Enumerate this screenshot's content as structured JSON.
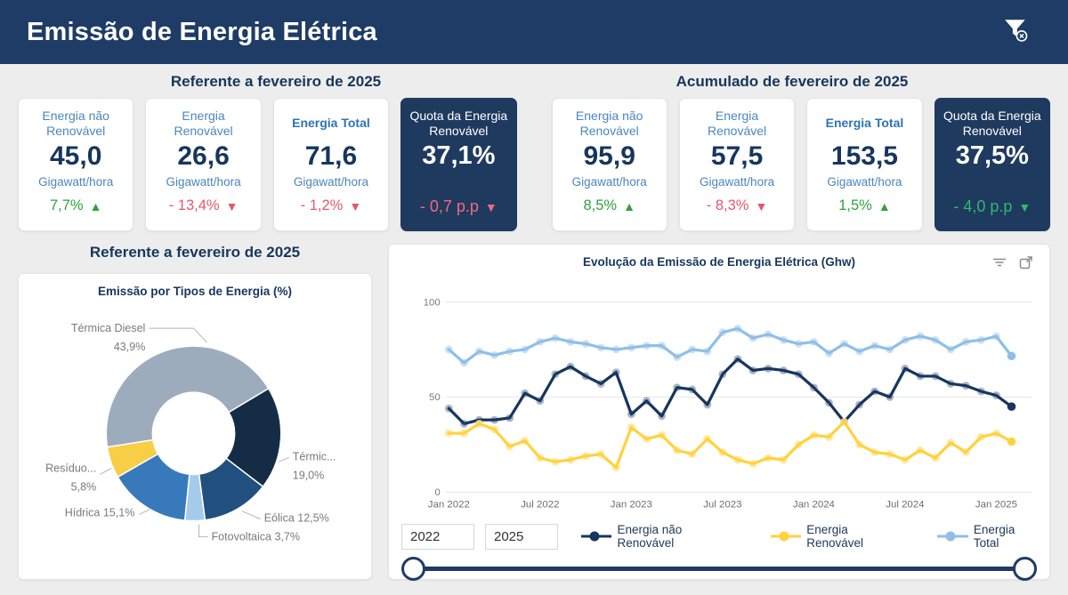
{
  "header": {
    "title": "Emissão de Energia Elétrica"
  },
  "icons": {
    "header_right": "clear-filter-funnel",
    "chart_header": [
      "filter-lines-icon",
      "focus-mode-icon"
    ]
  },
  "kpi_groups": [
    {
      "title": "Referente a fevereiro de 2025",
      "cards": [
        {
          "label": "Energia não Renovável",
          "value": "45,0",
          "unit": "Gigawatt/hora",
          "delta": "7,7%",
          "arrow": "up",
          "delta_color": "green",
          "style": "light",
          "bold": false
        },
        {
          "label": "Energia Renovável",
          "value": "26,6",
          "unit": "Gigawatt/hora",
          "delta": "- 13,4%",
          "arrow": "down",
          "delta_color": "red",
          "style": "light",
          "bold": false
        },
        {
          "label": "Energia Total",
          "value": "71,6",
          "unit": "Gigawatt/hora",
          "delta": "- 1,2%",
          "arrow": "down",
          "delta_color": "red",
          "style": "light",
          "bold": true
        },
        {
          "label": "Quota da Energia Renovável",
          "value": "37,1%",
          "unit": "",
          "delta": "- 0,7 p.p",
          "arrow": "down",
          "delta_color": "red",
          "style": "dark",
          "bold": false
        }
      ]
    },
    {
      "title": "Acumulado de fevereiro de 2025",
      "cards": [
        {
          "label": "Energia não Renovável",
          "value": "95,9",
          "unit": "Gigawatt/hora",
          "delta": "8,5%",
          "arrow": "up",
          "delta_color": "green",
          "style": "light",
          "bold": false
        },
        {
          "label": "Energia Renovável",
          "value": "57,5",
          "unit": "Gigawatt/hora",
          "delta": "- 8,3%",
          "arrow": "down",
          "delta_color": "red",
          "style": "light",
          "bold": false
        },
        {
          "label": "Energia Total",
          "value": "153,5",
          "unit": "Gigawatt/hora",
          "delta": "1,5%",
          "arrow": "up",
          "delta_color": "green",
          "style": "light",
          "bold": true
        },
        {
          "label": "Quota da Energia Renovável",
          "value": "37,5%",
          "unit": "",
          "delta": "- 4,0 p.p",
          "arrow": "down",
          "delta_color": "green",
          "style": "dark",
          "bold": false
        }
      ]
    }
  ],
  "donut_section": {
    "header": "Referente a fevereiro de 2025"
  },
  "slicer": {
    "start": "2022",
    "end": "2025"
  },
  "chart_data": [
    {
      "type": "pie",
      "subtype": "donut",
      "title": "Emissão por Tipos de Energia (%)",
      "start_angle_deg": 261,
      "slices": [
        {
          "label": "Térmica Diesel",
          "pct_text": "43,9%",
          "value": 43.9,
          "color": "#9DACBD"
        },
        {
          "label": "Térmic...",
          "pct_text": "19,0%",
          "value": 19.0,
          "color": "#152C47"
        },
        {
          "label": "Eólica",
          "pct_text": "12,5%",
          "value": 12.5,
          "color": "#21507F"
        },
        {
          "label": "Fotovoltaica",
          "pct_text": "3,7%",
          "value": 3.7,
          "color": "#A6CAEC"
        },
        {
          "label": "Hídrica",
          "pct_text": "15,1%",
          "value": 15.1,
          "color": "#3879BC"
        },
        {
          "label": "Resíduo...",
          "pct_text": "5,8%",
          "value": 5.8,
          "color": "#F8CE46"
        }
      ]
    },
    {
      "type": "line",
      "title": "Evolução da Emissão de Energia Elétrica (Ghw)",
      "ylim": [
        0,
        100
      ],
      "yticks": [
        0,
        50,
        100
      ],
      "x_tick_labels": [
        "Jan 2022",
        "Jul 2022",
        "Jan 2023",
        "Jul 2023",
        "Jan 2024",
        "Jul 2024",
        "Jan 2025"
      ],
      "x_tick_indices": [
        0,
        6,
        12,
        18,
        24,
        30,
        36
      ],
      "grid": "horizontal",
      "legend_position": "bottom",
      "series": [
        {
          "name": "Energia não Renovável",
          "color": "#17365F",
          "halo": "#9AA7BC",
          "values": [
            44,
            36,
            38,
            38,
            39,
            52,
            48,
            62,
            66,
            61,
            57,
            63,
            41,
            48,
            40,
            55,
            54,
            46,
            62,
            70,
            64,
            65,
            64,
            62,
            55,
            47,
            37,
            46,
            53,
            50,
            65,
            61,
            61,
            57,
            56,
            53,
            50.9,
            45.0
          ]
        },
        {
          "name": "Energia Renovável",
          "color": "#FFD23F",
          "halo": "#FFE48E",
          "values": [
            31,
            31,
            36,
            33,
            24,
            27,
            18,
            16,
            17,
            19,
            20,
            13,
            34,
            28,
            30,
            22,
            20,
            28,
            21,
            17,
            15,
            18,
            17,
            25,
            30,
            29,
            37,
            25,
            21,
            20,
            17,
            22,
            18,
            26,
            21,
            29,
            30.9,
            26.6
          ]
        },
        {
          "name": "Energia Total",
          "color": "#8FBFE8",
          "halo": "#C2DDF2",
          "values": [
            75,
            68,
            74,
            72,
            74,
            75,
            79,
            81,
            79,
            78,
            76,
            75,
            76,
            77,
            77,
            71,
            75,
            74,
            84,
            86,
            81,
            83,
            80,
            78,
            79,
            73,
            78,
            74,
            77,
            75,
            80,
            82,
            80,
            75,
            79,
            80,
            81.9,
            71.6
          ]
        }
      ]
    }
  ]
}
